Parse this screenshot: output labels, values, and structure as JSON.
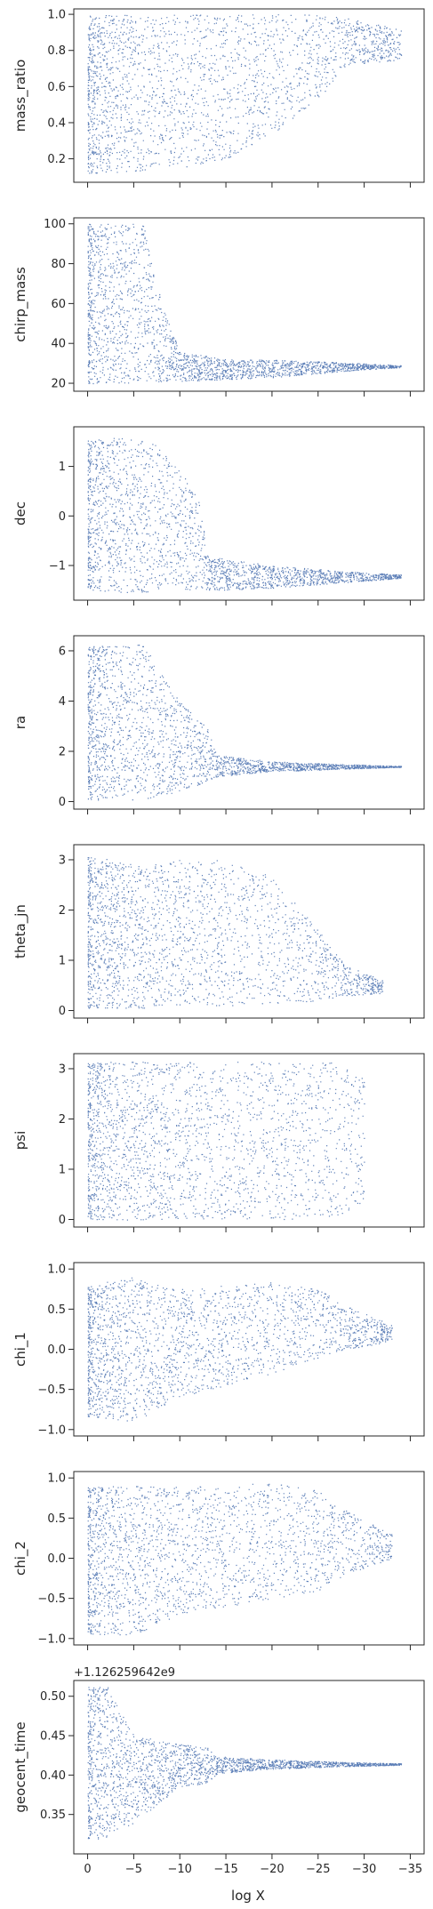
{
  "chart_data": {
    "type": "scatter",
    "xlabel": "log X",
    "x_ticks": [
      0,
      -5,
      -10,
      -15,
      -20,
      -25,
      -30,
      -35
    ],
    "xlim": [
      1.5,
      -36.5
    ],
    "marker_color": "#4c72b0",
    "panels": [
      {
        "ylabel": "mass_ratio",
        "ylim": [
          0.07,
          1.03
        ],
        "yticks": [
          "0.2",
          "0.4",
          "0.6",
          "0.8",
          "1.0"
        ],
        "ytick_values": [
          0.2,
          0.4,
          0.6,
          0.8,
          1.0
        ],
        "envelope": [
          {
            "x": 0,
            "low": 0.12,
            "high": 1.0
          },
          {
            "x": -5,
            "low": 0.13,
            "high": 1.0
          },
          {
            "x": -10,
            "low": 0.15,
            "high": 1.0
          },
          {
            "x": -15,
            "low": 0.2,
            "high": 1.0
          },
          {
            "x": -20,
            "low": 0.34,
            "high": 1.0
          },
          {
            "x": -25,
            "low": 0.52,
            "high": 1.0
          },
          {
            "x": -28,
            "low": 0.72,
            "high": 0.98
          },
          {
            "x": -34,
            "low": 0.75,
            "high": 0.92
          }
        ]
      },
      {
        "ylabel": "chirp_mass",
        "ylim": [
          16,
          103
        ],
        "yticks": [
          "20",
          "40",
          "60",
          "80",
          "100"
        ],
        "ytick_values": [
          20,
          40,
          60,
          80,
          100
        ],
        "envelope": [
          {
            "x": 0,
            "low": 20,
            "high": 100
          },
          {
            "x": -6,
            "low": 20,
            "high": 100
          },
          {
            "x": -8,
            "low": 21,
            "high": 60
          },
          {
            "x": -10,
            "low": 21,
            "high": 36
          },
          {
            "x": -15,
            "low": 22,
            "high": 32
          },
          {
            "x": -20,
            "low": 23,
            "high": 32
          },
          {
            "x": -25,
            "low": 25,
            "high": 31
          },
          {
            "x": -30,
            "low": 27,
            "high": 30
          },
          {
            "x": -34,
            "low": 28,
            "high": 29
          }
        ]
      },
      {
        "ylabel": "dec",
        "ylim": [
          -1.7,
          1.8
        ],
        "yticks": [
          "−1",
          "0",
          "1"
        ],
        "ytick_values": [
          -1,
          0,
          1
        ],
        "envelope": [
          {
            "x": 0,
            "low": -1.5,
            "high": 1.55
          },
          {
            "x": -5,
            "low": -1.55,
            "high": 1.6
          },
          {
            "x": -8,
            "low": -1.5,
            "high": 1.4
          },
          {
            "x": -12,
            "low": -1.5,
            "high": 0.4
          },
          {
            "x": -13,
            "low": -1.5,
            "high": -0.8
          },
          {
            "x": -20,
            "low": -1.45,
            "high": -1.0
          },
          {
            "x": -27,
            "low": -1.35,
            "high": -1.1
          },
          {
            "x": -34,
            "low": -1.25,
            "high": -1.18
          }
        ]
      },
      {
        "ylabel": "ra",
        "ylim": [
          -0.3,
          6.6
        ],
        "yticks": [
          "0",
          "2",
          "4",
          "6"
        ],
        "ytick_values": [
          0,
          2,
          4,
          6
        ],
        "envelope": [
          {
            "x": 0,
            "low": 0.05,
            "high": 6.25
          },
          {
            "x": -6,
            "low": 0.1,
            "high": 6.25
          },
          {
            "x": -10,
            "low": 0.4,
            "high": 4.0
          },
          {
            "x": -13,
            "low": 0.8,
            "high": 2.9
          },
          {
            "x": -14,
            "low": 1.0,
            "high": 1.9
          },
          {
            "x": -20,
            "low": 1.2,
            "high": 1.6
          },
          {
            "x": -27,
            "low": 1.3,
            "high": 1.5
          },
          {
            "x": -34,
            "low": 1.38,
            "high": 1.42
          }
        ]
      },
      {
        "ylabel": "theta_jn",
        "ylim": [
          -0.15,
          3.3
        ],
        "yticks": [
          "0",
          "1",
          "2",
          "3"
        ],
        "ytick_values": [
          0,
          1,
          2,
          3
        ],
        "envelope": [
          {
            "x": 0,
            "low": 0.02,
            "high": 3.1
          },
          {
            "x": -5,
            "low": 0.05,
            "high": 2.9
          },
          {
            "x": -10,
            "low": 0.08,
            "high": 3.0
          },
          {
            "x": -15,
            "low": 0.1,
            "high": 3.0
          },
          {
            "x": -20,
            "low": 0.15,
            "high": 2.7
          },
          {
            "x": -25,
            "low": 0.2,
            "high": 1.6
          },
          {
            "x": -28,
            "low": 0.3,
            "high": 0.9
          },
          {
            "x": -32,
            "low": 0.35,
            "high": 0.6
          }
        ]
      },
      {
        "ylabel": "psi",
        "ylim": [
          -0.15,
          3.3
        ],
        "yticks": [
          "0",
          "1",
          "2",
          "3"
        ],
        "ytick_values": [
          0,
          1,
          2,
          3
        ],
        "envelope": [
          {
            "x": 0,
            "low": 0.0,
            "high": 3.14
          },
          {
            "x": -10,
            "low": 0.0,
            "high": 3.14
          },
          {
            "x": -20,
            "low": 0.0,
            "high": 3.14
          },
          {
            "x": -27,
            "low": 0.0,
            "high": 3.14
          },
          {
            "x": -30,
            "low": 0.3,
            "high": 2.8
          }
        ]
      },
      {
        "ylabel": "chi_1",
        "ylim": [
          -1.08,
          1.08
        ],
        "yticks": [
          "−1.0",
          "−0.5",
          "0.0",
          "0.5",
          "1.0"
        ],
        "ytick_values": [
          -1.0,
          -0.5,
          0.0,
          0.5,
          1.0
        ],
        "envelope": [
          {
            "x": 0,
            "low": -0.85,
            "high": 0.8
          },
          {
            "x": -5,
            "low": -0.9,
            "high": 0.9
          },
          {
            "x": -10,
            "low": -0.6,
            "high": 0.75
          },
          {
            "x": -15,
            "low": -0.45,
            "high": 0.8
          },
          {
            "x": -20,
            "low": -0.3,
            "high": 0.85
          },
          {
            "x": -25,
            "low": -0.1,
            "high": 0.75
          },
          {
            "x": -28,
            "low": 0.0,
            "high": 0.55
          },
          {
            "x": -33,
            "low": 0.1,
            "high": 0.3
          }
        ]
      },
      {
        "ylabel": "chi_2",
        "ylim": [
          -1.08,
          1.08
        ],
        "yticks": [
          "−1.0",
          "−0.5",
          "0.0",
          "0.5",
          "1.0"
        ],
        "ytick_values": [
          -1.0,
          -0.5,
          0.0,
          0.5,
          1.0
        ],
        "envelope": [
          {
            "x": 0,
            "low": -0.95,
            "high": 0.9
          },
          {
            "x": -5,
            "low": -0.95,
            "high": 0.9
          },
          {
            "x": -10,
            "low": -0.7,
            "high": 0.9
          },
          {
            "x": -15,
            "low": -0.6,
            "high": 0.9
          },
          {
            "x": -20,
            "low": -0.5,
            "high": 0.95
          },
          {
            "x": -25,
            "low": -0.4,
            "high": 0.85
          },
          {
            "x": -28,
            "low": -0.2,
            "high": 0.6
          },
          {
            "x": -33,
            "low": 0.0,
            "high": 0.3
          }
        ]
      },
      {
        "ylabel": "geocent_time",
        "offset_label": "+1.126259642e9",
        "ylim": [
          0.3,
          0.52
        ],
        "yticks": [
          "0.35",
          "0.40",
          "0.45",
          "0.50"
        ],
        "ytick_values": [
          0.35,
          0.4,
          0.45,
          0.5
        ],
        "envelope": [
          {
            "x": 0,
            "low": 0.318,
            "high": 0.515
          },
          {
            "x": -2,
            "low": 0.32,
            "high": 0.515
          },
          {
            "x": -5,
            "low": 0.34,
            "high": 0.45
          },
          {
            "x": -10,
            "low": 0.385,
            "high": 0.44
          },
          {
            "x": -13,
            "low": 0.39,
            "high": 0.435
          },
          {
            "x": -14,
            "low": 0.402,
            "high": 0.424
          },
          {
            "x": -20,
            "low": 0.408,
            "high": 0.42
          },
          {
            "x": -27,
            "low": 0.411,
            "high": 0.417
          },
          {
            "x": -34,
            "low": 0.413,
            "high": 0.415
          }
        ]
      }
    ]
  }
}
